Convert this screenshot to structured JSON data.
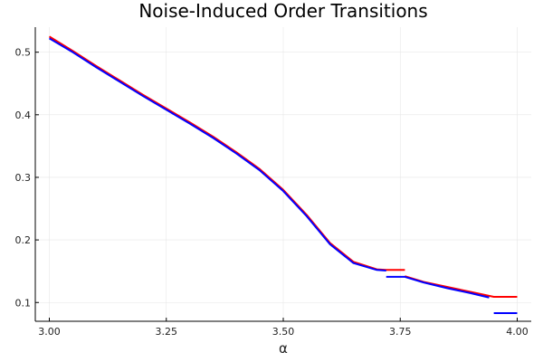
{
  "chart_data": {
    "type": "line",
    "title": "Noise-Induced Order Transitions",
    "xlabel": "α",
    "ylabel": "",
    "xlim": [
      2.97,
      4.03
    ],
    "ylim": [
      0.07,
      0.54
    ],
    "xticks": [
      3.0,
      3.25,
      3.5,
      3.75,
      4.0
    ],
    "xtick_labels": [
      "3.00",
      "3.25",
      "3.50",
      "3.75",
      "4.00"
    ],
    "yticks": [
      0.1,
      0.2,
      0.3,
      0.4,
      0.5
    ],
    "ytick_labels": [
      "0.1",
      "0.2",
      "0.3",
      "0.4",
      "0.5"
    ],
    "grid": true,
    "legend": false,
    "series": [
      {
        "color": "#ff0000",
        "segments": [
          [
            [
              3.0,
              0.525
            ],
            [
              3.05,
              0.502
            ],
            [
              3.1,
              0.478
            ],
            [
              3.15,
              0.455
            ],
            [
              3.2,
              0.432
            ],
            [
              3.25,
              0.41
            ],
            [
              3.3,
              0.388
            ],
            [
              3.35,
              0.365
            ],
            [
              3.4,
              0.34
            ],
            [
              3.45,
              0.313
            ],
            [
              3.5,
              0.28
            ],
            [
              3.55,
              0.24
            ],
            [
              3.6,
              0.195
            ],
            [
              3.65,
              0.165
            ],
            [
              3.7,
              0.153
            ],
            [
              3.72,
              0.152
            ],
            [
              3.76,
              0.152
            ]
          ],
          [
            [
              3.76,
              0.142
            ],
            [
              3.8,
              0.133
            ],
            [
              3.85,
              0.125
            ],
            [
              3.9,
              0.117
            ],
            [
              3.95,
              0.109
            ],
            [
              4.0,
              0.109
            ]
          ]
        ]
      },
      {
        "color": "#0000ff",
        "segments": [
          [
            [
              3.0,
              0.522
            ],
            [
              3.05,
              0.5
            ],
            [
              3.1,
              0.476
            ],
            [
              3.15,
              0.453
            ],
            [
              3.2,
              0.43
            ],
            [
              3.25,
              0.408
            ],
            [
              3.3,
              0.386
            ],
            [
              3.35,
              0.363
            ],
            [
              3.4,
              0.338
            ],
            [
              3.45,
              0.311
            ],
            [
              3.5,
              0.278
            ],
            [
              3.55,
              0.238
            ],
            [
              3.6,
              0.193
            ],
            [
              3.65,
              0.163
            ],
            [
              3.7,
              0.152
            ],
            [
              3.72,
              0.151
            ]
          ],
          [
            [
              3.72,
              0.141
            ],
            [
              3.76,
              0.141
            ],
            [
              3.8,
              0.132
            ],
            [
              3.85,
              0.123
            ],
            [
              3.9,
              0.115
            ],
            [
              3.94,
              0.108
            ]
          ],
          [
            [
              3.95,
              0.083
            ],
            [
              4.0,
              0.083
            ]
          ]
        ]
      }
    ]
  }
}
